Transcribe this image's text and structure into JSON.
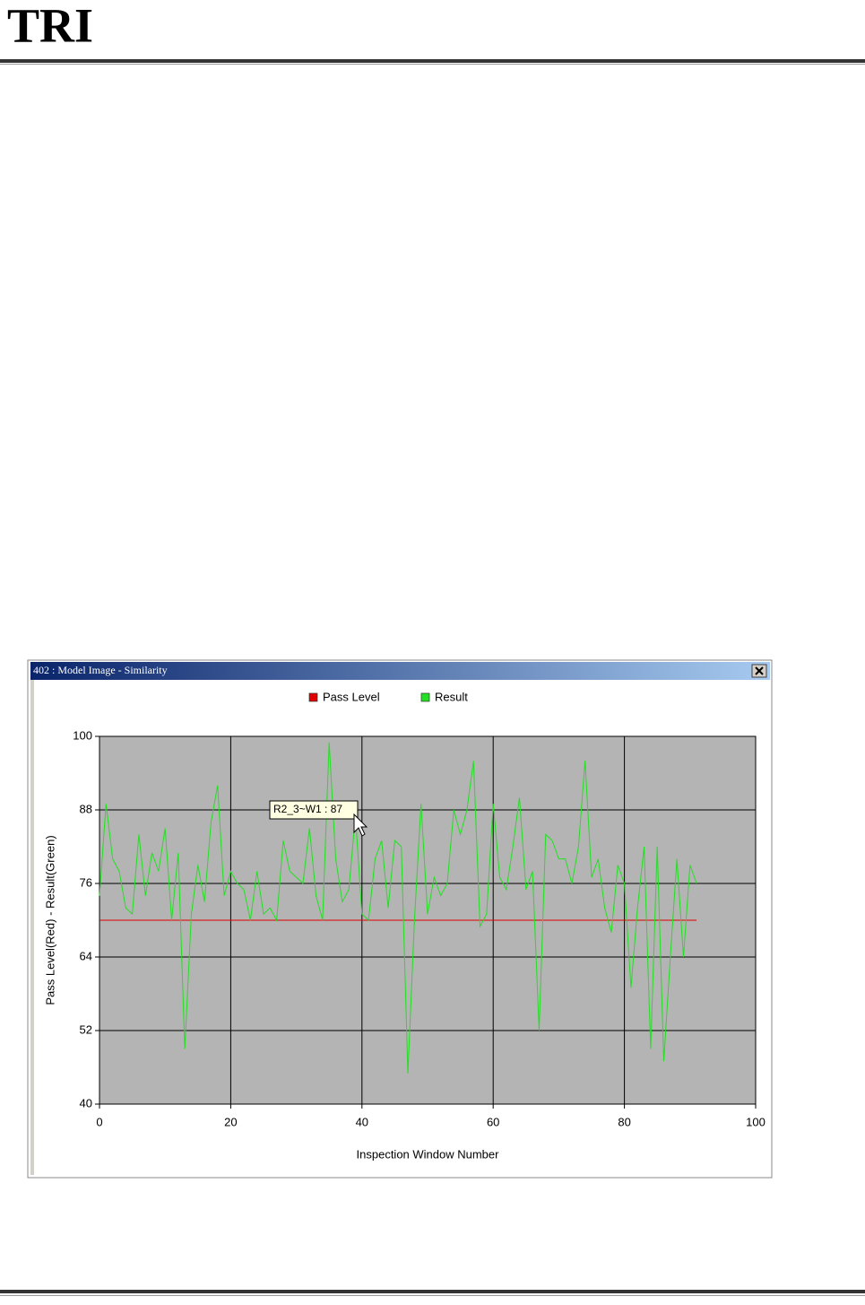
{
  "logo": "TRI",
  "window_title": "402 : Model Image - Similarity",
  "chart_data": {
    "type": "line",
    "annotation": "R2_3~W1 : 87",
    "xlabel": "Inspection Window Number",
    "ylabel": "Pass Level(Red) - Result(Green)",
    "x": [
      0,
      1,
      2,
      3,
      4,
      5,
      6,
      7,
      8,
      9,
      10,
      11,
      12,
      13,
      14,
      15,
      16,
      17,
      18,
      19,
      20,
      21,
      22,
      23,
      24,
      25,
      26,
      27,
      28,
      29,
      30,
      31,
      32,
      33,
      34,
      35,
      36,
      37,
      38,
      39,
      40,
      41,
      42,
      43,
      44,
      45,
      46,
      47,
      48,
      49,
      50,
      51,
      52,
      53,
      54,
      55,
      56,
      57,
      58,
      59,
      60,
      61,
      62,
      63,
      64,
      65,
      66,
      67,
      68,
      69,
      70,
      71,
      72,
      73,
      74,
      75,
      76,
      77,
      78,
      79,
      80,
      81,
      82,
      83,
      84,
      85,
      86,
      87,
      88,
      89,
      90,
      91
    ],
    "series": [
      {
        "name": "Pass Level",
        "color": "#e00000",
        "values": [
          70,
          70,
          70,
          70,
          70,
          70,
          70,
          70,
          70,
          70,
          70,
          70,
          70,
          70,
          70,
          70,
          70,
          70,
          70,
          70,
          70,
          70,
          70,
          70,
          70,
          70,
          70,
          70,
          70,
          70,
          70,
          70,
          70,
          70,
          70,
          70,
          70,
          70,
          70,
          70,
          70,
          70,
          70,
          70,
          70,
          70,
          70,
          70,
          70,
          70,
          70,
          70,
          70,
          70,
          70,
          70,
          70,
          70,
          70,
          70,
          70,
          70,
          70,
          70,
          70,
          70,
          70,
          70,
          70,
          70,
          70,
          70,
          70,
          70,
          70,
          70,
          70,
          70,
          70,
          70,
          70,
          70,
          70,
          70,
          70,
          70,
          70,
          70,
          70,
          70,
          70,
          70
        ]
      },
      {
        "name": "Result",
        "color": "#22e022",
        "values": [
          74,
          89,
          80,
          78,
          72,
          71,
          84,
          74,
          81,
          78,
          85,
          70,
          81,
          49,
          71,
          79,
          73,
          86,
          92,
          74,
          78,
          76,
          75,
          70,
          78,
          71,
          72,
          70,
          83,
          78,
          77,
          76,
          85,
          74,
          70,
          99,
          80,
          73,
          75,
          87,
          71,
          70,
          80,
          83,
          72,
          83,
          82,
          45,
          70,
          89,
          71,
          77,
          74,
          76,
          88,
          84,
          88,
          96,
          69,
          71,
          89,
          77,
          75,
          82,
          90,
          75,
          78,
          52,
          84,
          83,
          80,
          80,
          76,
          82,
          96,
          77,
          80,
          72,
          68,
          79,
          76,
          59,
          72,
          82,
          49,
          82,
          47,
          64,
          80,
          64,
          79,
          76
        ]
      }
    ],
    "xlim": [
      0,
      100
    ],
    "xticks": [
      0,
      20,
      40,
      60,
      80,
      100
    ],
    "ylim": [
      40,
      100
    ],
    "yticks": [
      40,
      52,
      64,
      76,
      88,
      100
    ],
    "grid": true,
    "legend": "top"
  }
}
